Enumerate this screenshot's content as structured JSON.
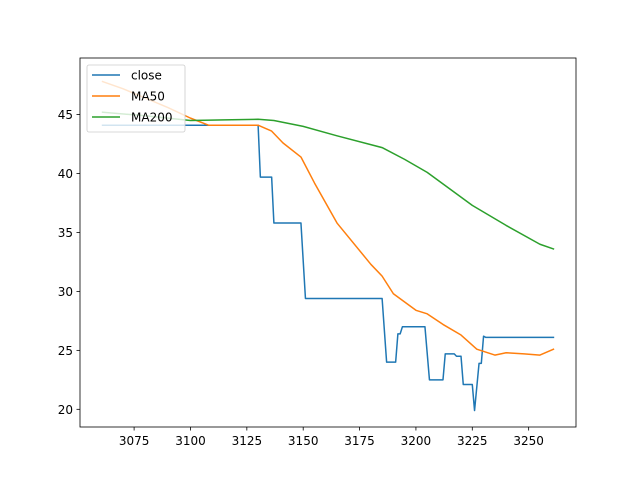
{
  "chart_data": {
    "type": "line",
    "title": "",
    "xlabel": "",
    "ylabel": "",
    "xlim": [
      3051,
      3271
    ],
    "ylim": [
      18.5,
      49.8
    ],
    "xticks": [
      3075,
      3100,
      3125,
      3150,
      3175,
      3200,
      3225,
      3250
    ],
    "yticks": [
      20,
      25,
      30,
      35,
      40,
      45
    ],
    "grid": false,
    "legend_position": "upper-left",
    "series": [
      {
        "name": "close",
        "color": "#1f77b4",
        "x": [
          3061,
          3130,
          3131,
          3136,
          3137,
          3149,
          3151,
          3185,
          3187,
          3191,
          3192,
          3193,
          3194,
          3204,
          3206,
          3212,
          3213,
          3217,
          3218,
          3220,
          3221,
          3225,
          3226,
          3228,
          3229,
          3230,
          3231,
          3261
        ],
        "y": [
          44.1,
          44.1,
          39.7,
          39.7,
          35.8,
          35.8,
          29.4,
          29.4,
          24.0,
          24.0,
          26.4,
          26.4,
          27.0,
          27.0,
          22.5,
          22.5,
          24.7,
          24.7,
          24.5,
          24.5,
          22.1,
          22.1,
          19.9,
          23.9,
          23.9,
          26.2,
          26.1,
          26.1
        ]
      },
      {
        "name": "MA50",
        "color": "#ff7f0e",
        "x": [
          3061,
          3070,
          3080,
          3090,
          3100,
          3108,
          3120,
          3130,
          3136,
          3141,
          3149,
          3155,
          3165,
          3180,
          3185,
          3190,
          3200,
          3205,
          3212,
          3220,
          3227,
          3235,
          3240,
          3248,
          3255,
          3261
        ],
        "y": [
          47.8,
          47.2,
          46.4,
          45.6,
          44.7,
          44.1,
          44.1,
          44.1,
          43.6,
          42.6,
          41.4,
          39.2,
          35.8,
          32.3,
          31.3,
          29.8,
          28.4,
          28.1,
          27.2,
          26.3,
          25.1,
          24.6,
          24.8,
          24.7,
          24.6,
          25.1
        ]
      },
      {
        "name": "MA200",
        "color": "#2ca02c",
        "x": [
          3061,
          3080,
          3100,
          3115,
          3130,
          3137,
          3150,
          3165,
          3185,
          3195,
          3205,
          3215,
          3225,
          3240,
          3255,
          3261
        ],
        "y": [
          45.2,
          44.9,
          44.5,
          44.55,
          44.6,
          44.5,
          44.0,
          43.2,
          42.2,
          41.2,
          40.1,
          38.7,
          37.3,
          35.6,
          34.0,
          33.6
        ]
      }
    ]
  }
}
